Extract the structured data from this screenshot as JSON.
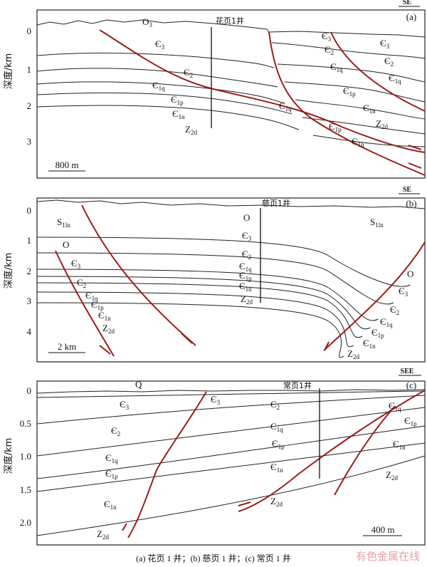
{
  "panels": [
    {
      "direction": "SE",
      "tag": "(a)",
      "well": "花页1井",
      "axis_label": "深度/km",
      "depth_ticks": [
        "0",
        "1",
        "2",
        "3"
      ],
      "scale_bar": "800 m",
      "labels": [
        {
          "main": "O",
          "sub": "3"
        },
        {
          "main": "Є",
          "sub": "3"
        },
        {
          "main": "Є",
          "sub": "2"
        },
        {
          "main": "Є",
          "sub": "1q"
        },
        {
          "main": "Є",
          "sub": "1p"
        },
        {
          "main": "Є",
          "sub": "1n"
        },
        {
          "main": "Z",
          "sub": "2d"
        },
        {
          "main": "Є",
          "sub": "3"
        },
        {
          "main": "Є",
          "sub": "2"
        },
        {
          "main": "Є",
          "sub": "1q"
        },
        {
          "main": "Є",
          "sub": "1p"
        },
        {
          "main": "Є",
          "sub": "1q"
        },
        {
          "main": "Є",
          "sub": "1n"
        },
        {
          "main": "Z",
          "sub": "2d"
        },
        {
          "main": "Є",
          "sub": "1p"
        },
        {
          "main": "Є",
          "sub": "1n"
        },
        {
          "main": "Є",
          "sub": "3"
        },
        {
          "main": "Є",
          "sub": "2"
        },
        {
          "main": "Є",
          "sub": "1q"
        }
      ]
    },
    {
      "direction": "SE",
      "tag": "(b)",
      "well": "慈页1井",
      "axis_label": "深度/km",
      "depth_ticks": [
        "0",
        "1",
        "2",
        "3",
        "4"
      ],
      "scale_bar": "2 km",
      "labels": [
        {
          "main": "S",
          "sub": "1ln"
        },
        {
          "main": "O"
        },
        {
          "main": "Є",
          "sub": "3"
        },
        {
          "main": "Є",
          "sub": "2"
        },
        {
          "main": "Є",
          "sub": "1q"
        },
        {
          "main": "Є",
          "sub": "1p"
        },
        {
          "main": "Є",
          "sub": "1n"
        },
        {
          "main": "Z",
          "sub": "2d"
        },
        {
          "main": "O"
        },
        {
          "main": "Є",
          "sub": "3"
        },
        {
          "main": "Є",
          "sub": "2"
        },
        {
          "main": "Є",
          "sub": "1q"
        },
        {
          "main": "Є",
          "sub": "1p"
        },
        {
          "main": "Є",
          "sub": "1n"
        },
        {
          "main": "Z",
          "sub": "2d"
        },
        {
          "main": "S",
          "sub": "1ln"
        },
        {
          "main": "O"
        },
        {
          "main": "Є",
          "sub": "3"
        },
        {
          "main": "Є",
          "sub": "2"
        },
        {
          "main": "Є",
          "sub": "1q"
        },
        {
          "main": "Є",
          "sub": "1p"
        },
        {
          "main": "Є",
          "sub": "1n"
        },
        {
          "main": "Z",
          "sub": "2d"
        }
      ]
    },
    {
      "direction": "SEE",
      "tag": "(c)",
      "well": "常页1井",
      "axis_label": "深度/km",
      "depth_ticks": [
        "0",
        "0.5",
        "1.0",
        "1.5",
        "2.0"
      ],
      "scale_bar": "400 m",
      "labels": [
        {
          "main": "Q"
        },
        {
          "main": "Є",
          "sub": "3"
        },
        {
          "main": "Є",
          "sub": "3"
        },
        {
          "main": "Є",
          "sub": "2"
        },
        {
          "main": "Є",
          "sub": "1q"
        },
        {
          "main": "Є",
          "sub": "1p"
        },
        {
          "main": "Є",
          "sub": "1n"
        },
        {
          "main": "Z",
          "sub": "2d"
        },
        {
          "main": "Є",
          "sub": "2"
        },
        {
          "main": "Є",
          "sub": "1q"
        },
        {
          "main": "Є",
          "sub": "1p"
        },
        {
          "main": "Є",
          "sub": "1n"
        },
        {
          "main": "Z",
          "sub": "2d"
        },
        {
          "main": "Є",
          "sub": "1q"
        },
        {
          "main": "Є",
          "sub": "1p"
        },
        {
          "main": "Є",
          "sub": "1n"
        },
        {
          "main": "Z",
          "sub": "2d"
        }
      ]
    }
  ],
  "caption": "(a) 花页 1 井；(b) 慈页 1 井；(c) 常页 1 井",
  "watermark": "有色金属在线"
}
